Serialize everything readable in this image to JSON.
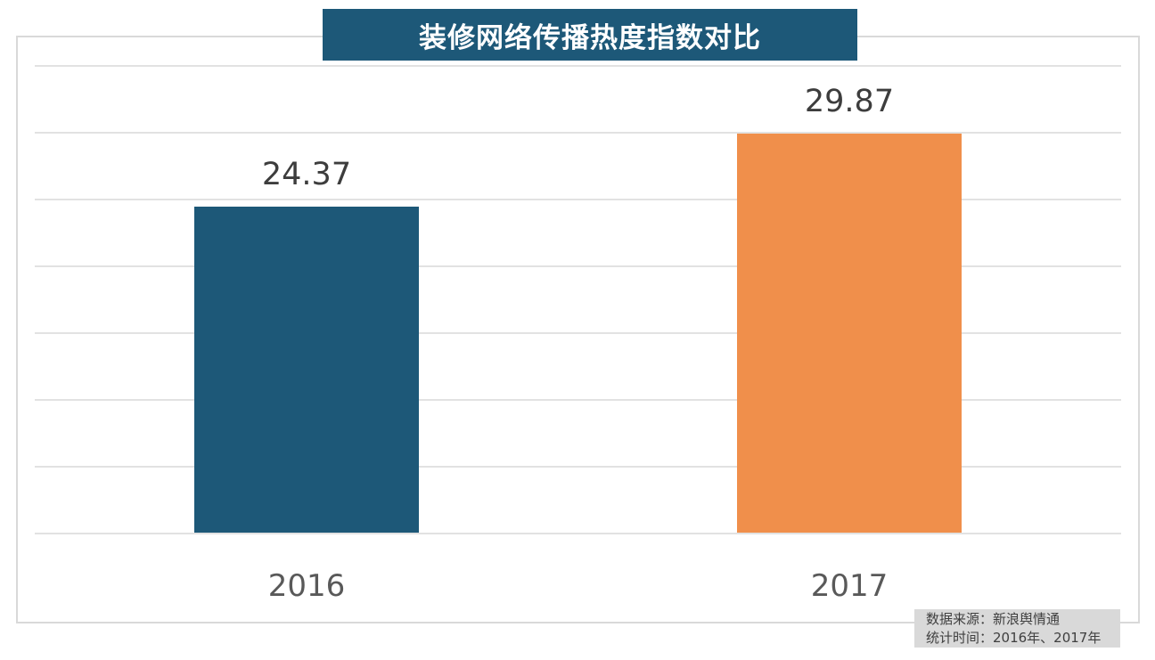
{
  "title": "装修网络传播热度指数对比",
  "source_box": {
    "line1": "数据来源：新浪舆情通",
    "line2": "统计时间：2016年、2017年"
  },
  "colors": {
    "title_bg": "#1d5878",
    "title_text": "#ffffff",
    "frame_border": "#d9d9d9",
    "gridline": "#e2e2e2",
    "value_label": "#3d3d3d",
    "category_label": "#595959",
    "source_bg": "#d9d9d9",
    "source_text": "#3f3f3f"
  },
  "chart_data": {
    "type": "bar",
    "title": "装修网络传播热度指数对比",
    "categories": [
      "2016",
      "2017"
    ],
    "values": [
      24.37,
      29.87
    ],
    "value_labels": [
      "24.37",
      "29.87"
    ],
    "bar_colors": [
      "#1d5878",
      "#f08f4b"
    ],
    "xlabel": "",
    "ylabel": "",
    "ylim": [
      0,
      35
    ],
    "y_gridline_step": 5,
    "y_tick_labels_visible": false,
    "grid": true,
    "legend": false
  }
}
